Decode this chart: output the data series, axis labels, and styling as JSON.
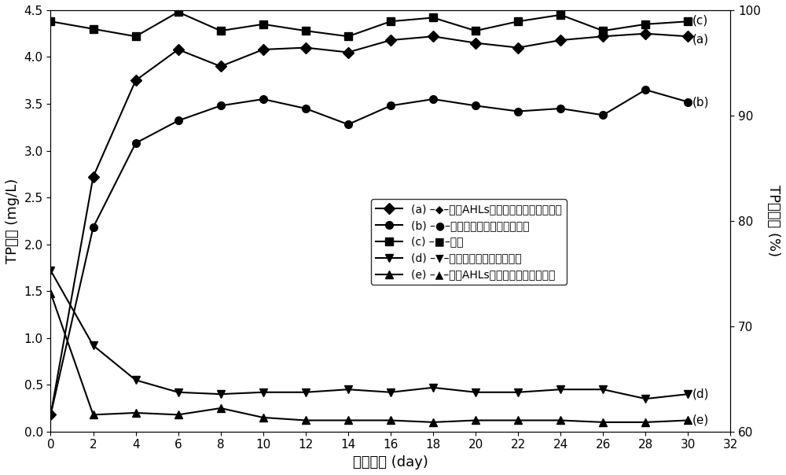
{
  "x": [
    0,
    2,
    4,
    6,
    8,
    10,
    12,
    14,
    16,
    18,
    20,
    22,
    24,
    26,
    28,
    30
  ],
  "series_c_inflow": [
    4.38,
    4.3,
    4.22,
    4.48,
    4.28,
    4.35,
    4.28,
    4.22,
    4.38,
    4.42,
    4.28,
    4.38,
    4.45,
    4.28,
    4.35,
    4.38
  ],
  "series_a_removal_AHLs": [
    0.18,
    2.72,
    3.75,
    4.08,
    3.9,
    4.08,
    4.1,
    4.05,
    4.18,
    4.22,
    4.15,
    4.1,
    4.18,
    4.22,
    4.25,
    4.22
  ],
  "series_b_removal_normal": [
    0.18,
    2.18,
    3.08,
    3.32,
    3.48,
    3.55,
    3.45,
    3.28,
    3.48,
    3.55,
    3.48,
    3.42,
    3.45,
    3.38,
    3.65,
    3.52
  ],
  "series_d_effluent_normal": [
    1.72,
    0.92,
    0.55,
    0.42,
    0.4,
    0.42,
    0.42,
    0.45,
    0.42,
    0.47,
    0.42,
    0.42,
    0.45,
    0.45,
    0.35,
    0.4
  ],
  "series_e_effluent_AHLs": [
    1.48,
    0.18,
    0.2,
    0.18,
    0.25,
    0.15,
    0.12,
    0.12,
    0.12,
    0.1,
    0.12,
    0.12,
    0.12,
    0.1,
    0.1,
    0.12
  ],
  "xlabel": "运行时间 (day)",
  "ylabel_left": "TP浓度 (mg/L)",
  "ylabel_right": "TP去除率 (%)",
  "xlim": [
    0,
    32
  ],
  "ylim_left": [
    0.0,
    4.5
  ],
  "ylim_right": [
    60,
    100
  ],
  "xticks": [
    0,
    2,
    4,
    6,
    8,
    10,
    12,
    14,
    16,
    18,
    20,
    22,
    24,
    26,
    28,
    30,
    32
  ],
  "yticks_left": [
    0.0,
    0.5,
    1.0,
    1.5,
    2.0,
    2.5,
    3.0,
    3.5,
    4.0,
    4.5
  ],
  "yticks_right": [
    60,
    70,
    80,
    90,
    100
  ],
  "legend_labels": [
    "(a) –◆–外添AHLs的周丛生物反应器去除率",
    "(b) –●–普通周丛生物反应器去除率",
    "(c) –■–进水",
    "(d) –▼–普通周丛生物反应器出水",
    "(e) –▲–外添AHLs的周丛生物反应器出水"
  ],
  "color": "#000000",
  "background": "#ffffff",
  "linewidth": 1.5,
  "markersize": 7,
  "fontsize_label": 13,
  "fontsize_tick": 11,
  "fontsize_legend": 10,
  "fontsize_annot": 11
}
